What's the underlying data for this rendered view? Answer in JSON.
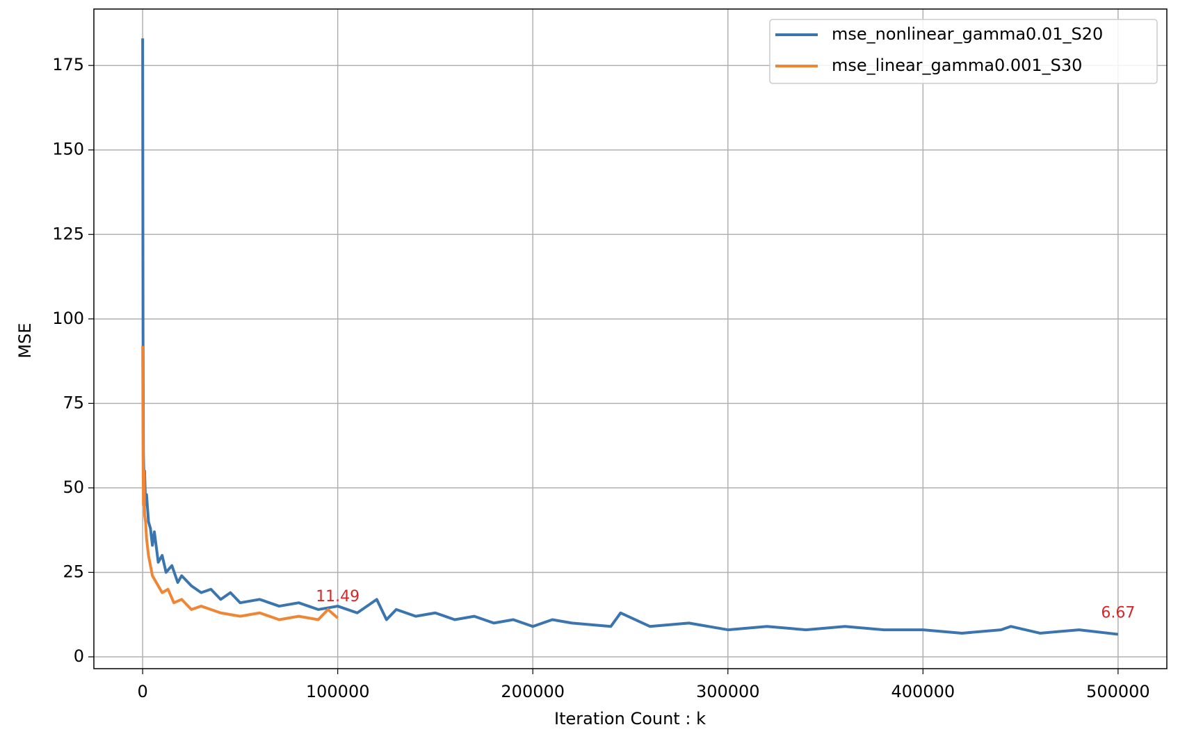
{
  "chart_data": {
    "type": "line",
    "x_label": "Iteration Count : k",
    "y_label": "MSE",
    "xlim": [
      -25000,
      525000
    ],
    "ylim": [
      -3.5,
      191.7
    ],
    "xticks": [
      0,
      100000,
      200000,
      300000,
      400000,
      500000
    ],
    "yticks": [
      0,
      25,
      50,
      75,
      100,
      125,
      150,
      175
    ],
    "grid": true,
    "legend": "upper right",
    "series": [
      {
        "name": "mse_nonlinear_gamma0.01_S20",
        "color": "#3b75af",
        "x": [
          0,
          200,
          400,
          700,
          1000,
          1500,
          2000,
          3000,
          4000,
          5000,
          6000,
          8000,
          10000,
          12000,
          15000,
          18000,
          20000,
          25000,
          30000,
          35000,
          40000,
          45000,
          50000,
          60000,
          70000,
          80000,
          90000,
          100000,
          110000,
          120000,
          125000,
          130000,
          140000,
          150000,
          160000,
          170000,
          180000,
          190000,
          200000,
          210000,
          220000,
          240000,
          245000,
          260000,
          280000,
          300000,
          320000,
          340000,
          360000,
          380000,
          400000,
          420000,
          440000,
          445000,
          460000,
          480000,
          500000
        ],
        "values": [
          183,
          95,
          60,
          52,
          55,
          45,
          48,
          40,
          38,
          33,
          37,
          28,
          30,
          25,
          27,
          22,
          24,
          21,
          19,
          20,
          17,
          19,
          16,
          17,
          15,
          16,
          14,
          15,
          13,
          17,
          11,
          14,
          12,
          13,
          11,
          12,
          10,
          11,
          9,
          11,
          10,
          9,
          13,
          9,
          10,
          8,
          9,
          8,
          9,
          8,
          8,
          7,
          8,
          9,
          7,
          8,
          6.67
        ]
      },
      {
        "name": "mse_linear_gamma0.001_S30",
        "color": "#ef8636",
        "x": [
          0,
          200,
          400,
          700,
          1000,
          1500,
          2000,
          3000,
          4000,
          5000,
          7000,
          10000,
          13000,
          16000,
          20000,
          25000,
          30000,
          40000,
          50000,
          60000,
          70000,
          80000,
          90000,
          95000,
          100000
        ],
        "values": [
          92,
          60,
          45,
          55,
          42,
          40,
          35,
          30,
          27,
          24,
          22,
          19,
          20,
          16,
          17,
          14,
          15,
          13,
          12,
          13,
          11,
          12,
          11,
          14,
          11.49
        ]
      }
    ],
    "annotations": [
      {
        "x": 100000,
        "y": 11.49,
        "color": "#d62728"
      },
      {
        "x": 500000,
        "y": 6.67,
        "color": "#d62728"
      }
    ]
  }
}
